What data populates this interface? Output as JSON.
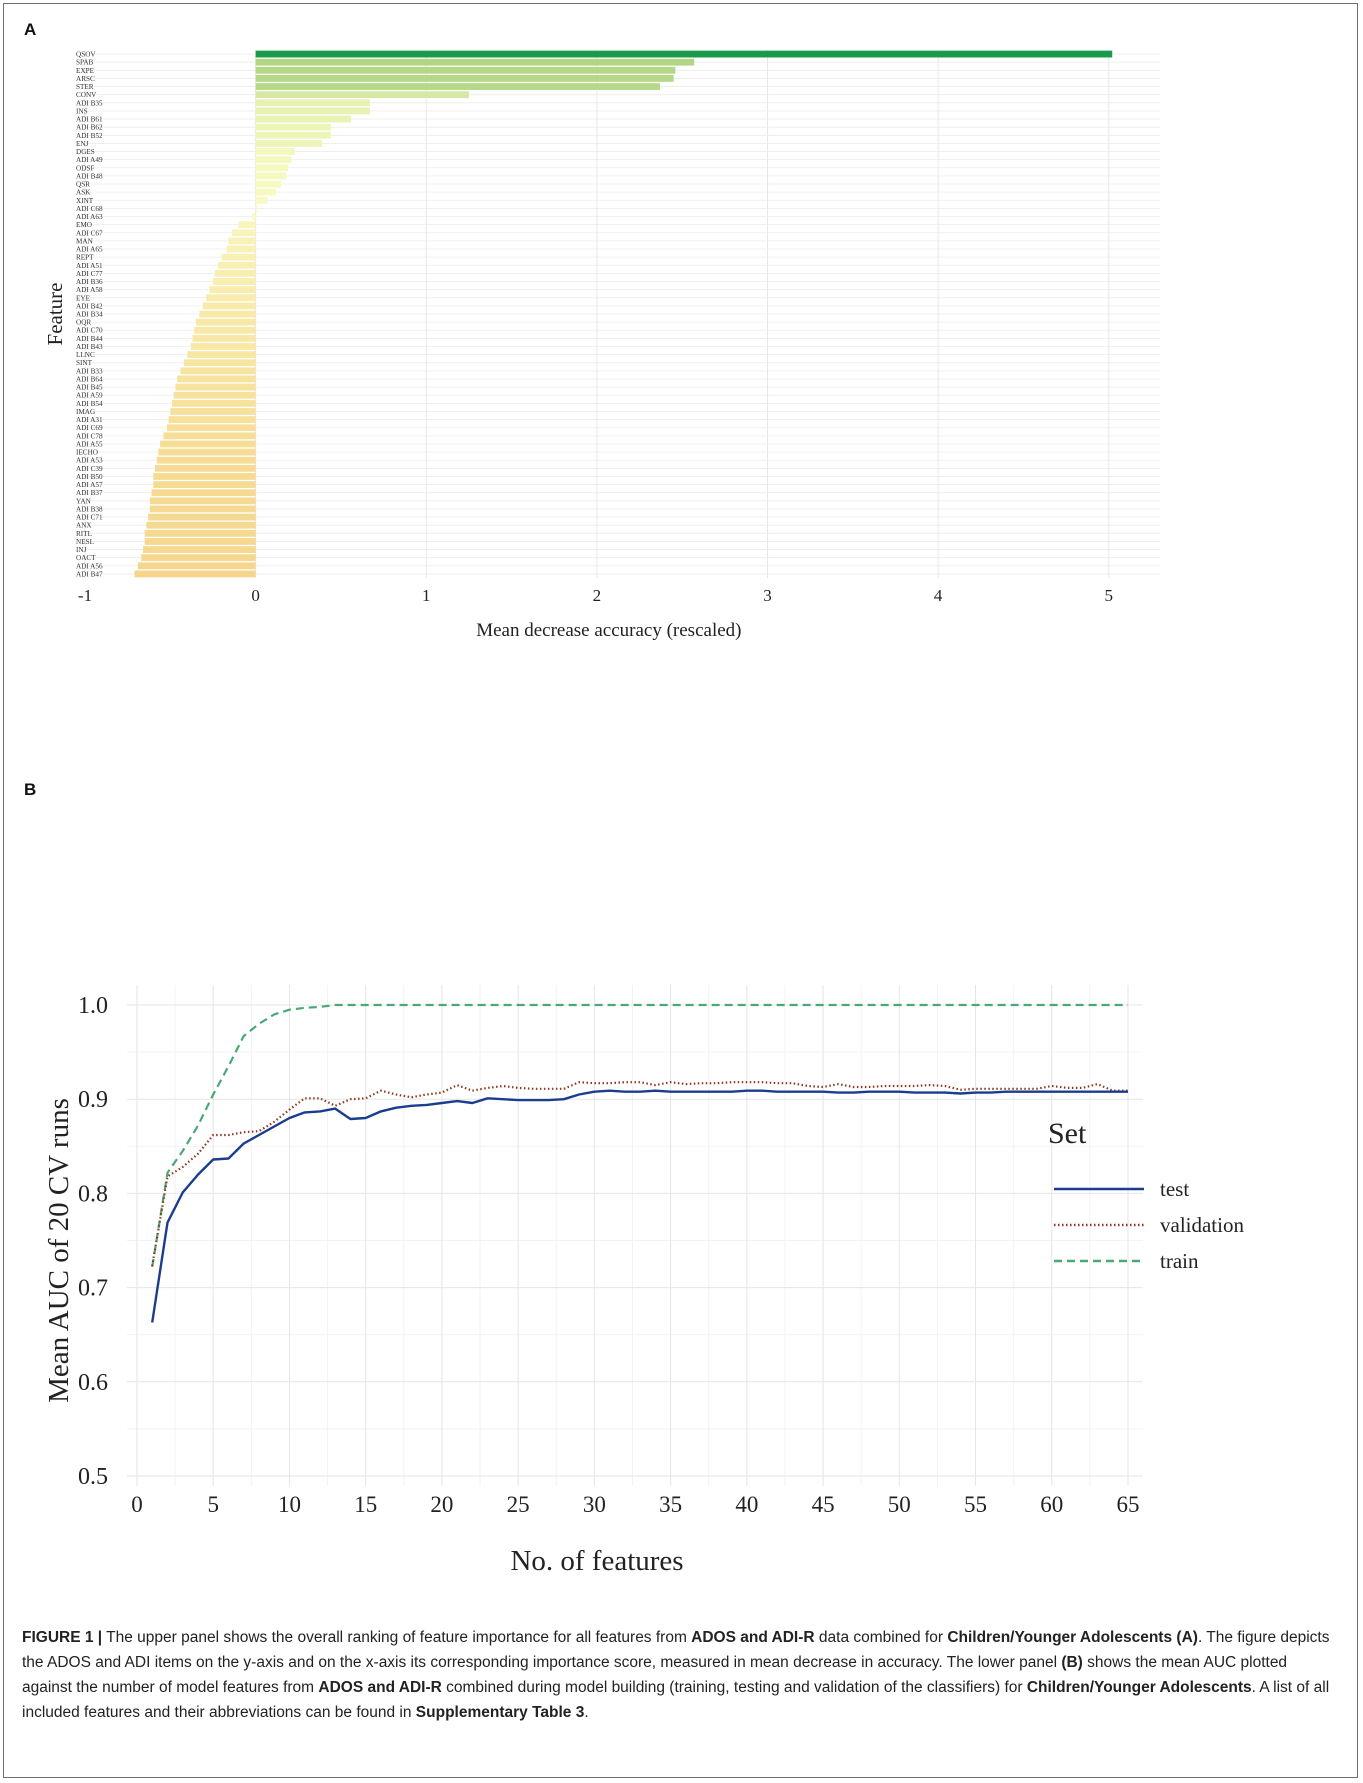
{
  "figure_frame": {},
  "panel_a": {
    "letter": "A",
    "chart_data": {
      "type": "bar",
      "orientation": "horizontal",
      "xlabel": "Mean decrease accuracy (rescaled)",
      "ylabel": "Feature",
      "xlim": [
        -1,
        5.3
      ],
      "xticks": [
        -1,
        0,
        1,
        2,
        3,
        4,
        5
      ],
      "grid": true,
      "color_scale": [
        "#1a9a4a",
        "#a3d078",
        "#fafbc4",
        "#f6d58a"
      ],
      "categories": [
        "QSOV",
        "SPAB",
        "EXPE",
        "ARSC",
        "STER",
        "CONV",
        "ADI B35",
        "INS",
        "ADI B61",
        "ADI B62",
        "ADI B52",
        "ENJ",
        "DGES",
        "ADI A49",
        "ODSF",
        "ADI B48",
        "QSR",
        "ASK",
        "XINT",
        "ADI C68",
        "ADI A63",
        "EMO",
        "ADI C67",
        "MAN",
        "ADI A65",
        "REPT",
        "ADI A51",
        "ADI C77",
        "ADI B36",
        "ADI A58",
        "EYE",
        "ADI B42",
        "ADI B34",
        "OQR",
        "ADI C70",
        "ADI B44",
        "ADI B43",
        "LLNC",
        "SINT",
        "ADI B33",
        "ADI B64",
        "ADI B45",
        "ADI A59",
        "ADI B54",
        "IMAG",
        "ADI A31",
        "ADI C69",
        "ADI C78",
        "ADI A55",
        "IECHO",
        "ADI A53",
        "ADI C39",
        "ADI B50",
        "ADI A57",
        "ADI B37",
        "YAN",
        "ADI B38",
        "ADI C71",
        "ANX",
        "RITL",
        "NESL",
        "INJ",
        "OACT",
        "ADI A56",
        "ADI B47"
      ],
      "values": [
        5.02,
        2.57,
        2.46,
        2.45,
        2.37,
        1.25,
        0.67,
        0.67,
        0.56,
        0.44,
        0.44,
        0.39,
        0.23,
        0.21,
        0.19,
        0.18,
        0.15,
        0.12,
        0.07,
        0.01,
        -0.02,
        -0.1,
        -0.14,
        -0.16,
        -0.17,
        -0.2,
        -0.22,
        -0.24,
        -0.25,
        -0.27,
        -0.29,
        -0.31,
        -0.33,
        -0.35,
        -0.36,
        -0.37,
        -0.38,
        -0.4,
        -0.42,
        -0.44,
        -0.46,
        -0.47,
        -0.48,
        -0.49,
        -0.5,
        -0.51,
        -0.52,
        -0.54,
        -0.56,
        -0.57,
        -0.58,
        -0.59,
        -0.6,
        -0.6,
        -0.61,
        -0.62,
        -0.62,
        -0.63,
        -0.64,
        -0.65,
        -0.65,
        -0.66,
        -0.67,
        -0.69,
        -0.71
      ]
    }
  },
  "panel_b": {
    "letter": "B",
    "chart_data": {
      "type": "line",
      "xlabel": "No. of features",
      "ylabel": "Mean  AUC of 20 CV runs",
      "xlim": [
        0,
        65
      ],
      "ylim": [
        0.5,
        1.0
      ],
      "xticks": [
        0,
        5,
        10,
        15,
        20,
        25,
        30,
        35,
        40,
        45,
        50,
        55,
        60,
        65
      ],
      "yticks": [
        0.5,
        0.6,
        0.7,
        0.8,
        0.9,
        1.0
      ],
      "ytick_labels": [
        "0.5",
        "0.6",
        "0.7",
        "0.8",
        "0.9",
        "1.0"
      ],
      "grid": true,
      "legend_title": "Set",
      "legend_position": "right",
      "series": [
        {
          "name": "test",
          "color": "#1b3d8f",
          "dash": "solid",
          "x": [
            1,
            2,
            3,
            4,
            5,
            6,
            7,
            8,
            9,
            10,
            11,
            12,
            13,
            14,
            15,
            16,
            17,
            18,
            19,
            20,
            21,
            22,
            23,
            24,
            25,
            26,
            27,
            28,
            29,
            30,
            31,
            32,
            33,
            34,
            35,
            36,
            37,
            38,
            39,
            40,
            41,
            42,
            43,
            44,
            45,
            46,
            47,
            48,
            49,
            50,
            51,
            52,
            53,
            54,
            55,
            56,
            57,
            58,
            59,
            60,
            61,
            62,
            63,
            64,
            65
          ],
          "values": [
            0.663,
            0.769,
            0.801,
            0.82,
            0.836,
            0.837,
            0.853,
            0.862,
            0.871,
            0.88,
            0.886,
            0.887,
            0.89,
            0.879,
            0.88,
            0.887,
            0.891,
            0.893,
            0.894,
            0.896,
            0.898,
            0.896,
            0.901,
            0.9,
            0.899,
            0.899,
            0.899,
            0.9,
            0.905,
            0.908,
            0.909,
            0.908,
            0.908,
            0.909,
            0.908,
            0.908,
            0.908,
            0.908,
            0.908,
            0.909,
            0.909,
            0.908,
            0.908,
            0.908,
            0.908,
            0.907,
            0.907,
            0.908,
            0.908,
            0.908,
            0.907,
            0.907,
            0.907,
            0.906,
            0.907,
            0.907,
            0.908,
            0.908,
            0.908,
            0.908,
            0.908,
            0.908,
            0.908,
            0.908,
            0.908
          ]
        },
        {
          "name": "validation",
          "color": "#8a3a1c",
          "dash": "dotted",
          "x": [
            1,
            2,
            3,
            4,
            5,
            6,
            7,
            8,
            9,
            10,
            11,
            12,
            13,
            14,
            15,
            16,
            17,
            18,
            19,
            20,
            21,
            22,
            23,
            24,
            25,
            26,
            27,
            28,
            29,
            30,
            31,
            32,
            33,
            34,
            35,
            36,
            37,
            38,
            39,
            40,
            41,
            42,
            43,
            44,
            45,
            46,
            47,
            48,
            49,
            50,
            51,
            52,
            53,
            54,
            55,
            56,
            57,
            58,
            59,
            60,
            61,
            62,
            63,
            64,
            65
          ],
          "values": [
            0.723,
            0.818,
            0.828,
            0.842,
            0.862,
            0.862,
            0.865,
            0.866,
            0.876,
            0.889,
            0.901,
            0.901,
            0.893,
            0.9,
            0.901,
            0.909,
            0.905,
            0.902,
            0.905,
            0.907,
            0.915,
            0.909,
            0.912,
            0.914,
            0.912,
            0.911,
            0.911,
            0.911,
            0.918,
            0.917,
            0.917,
            0.918,
            0.918,
            0.915,
            0.918,
            0.916,
            0.917,
            0.917,
            0.918,
            0.918,
            0.918,
            0.917,
            0.917,
            0.914,
            0.913,
            0.916,
            0.913,
            0.913,
            0.914,
            0.914,
            0.914,
            0.915,
            0.914,
            0.91,
            0.911,
            0.911,
            0.911,
            0.911,
            0.911,
            0.914,
            0.912,
            0.912,
            0.916,
            0.909,
            0.909
          ]
        },
        {
          "name": "train",
          "color": "#4aa876",
          "dash": "dashed",
          "x": [
            1,
            2,
            3,
            4,
            5,
            6,
            7,
            8,
            9,
            10,
            11,
            12,
            13,
            14,
            15,
            16,
            17,
            18,
            19,
            20,
            21,
            22,
            23,
            24,
            25,
            26,
            27,
            28,
            29,
            30,
            31,
            32,
            33,
            34,
            35,
            36,
            37,
            38,
            39,
            40,
            41,
            42,
            43,
            44,
            45,
            46,
            47,
            48,
            49,
            50,
            51,
            52,
            53,
            54,
            55,
            56,
            57,
            58,
            59,
            60,
            61,
            62,
            63,
            64,
            65
          ],
          "values": [
            0.722,
            0.822,
            0.845,
            0.872,
            0.905,
            0.935,
            0.967,
            0.98,
            0.99,
            0.995,
            0.997,
            0.998,
            1.0,
            1.0,
            1.0,
            1.0,
            1.0,
            1.0,
            1.0,
            1.0,
            1.0,
            1.0,
            1.0,
            1.0,
            1.0,
            1.0,
            1.0,
            1.0,
            1.0,
            1.0,
            1.0,
            1.0,
            1.0,
            1.0,
            1.0,
            1.0,
            1.0,
            1.0,
            1.0,
            1.0,
            1.0,
            1.0,
            1.0,
            1.0,
            1.0,
            1.0,
            1.0,
            1.0,
            1.0,
            1.0,
            1.0,
            1.0,
            1.0,
            1.0,
            1.0,
            1.0,
            1.0,
            1.0,
            1.0,
            1.0,
            1.0,
            1.0,
            1.0,
            1.0,
            1.0
          ]
        }
      ]
    }
  },
  "caption": {
    "figure_label": "FIGURE 1 |",
    "t1": " The upper panel shows the overall ranking of feature importance for all features from ",
    "b1": "ADOS and ADI-R",
    "t2": " data combined for ",
    "b2": "Children/Younger Adolescents",
    "t3": " ",
    "b3": "(A)",
    "t4": ". The figure depicts the ADOS and ADI items on the y-axis and on the x-axis its corresponding importance score, measured in mean decrease in accuracy. The lower panel ",
    "b4": "(B)",
    "t5": " shows the mean AUC plotted against the number of model features from ",
    "b5": "ADOS and ADI-R",
    "t6": " combined during model building (training, testing and validation of the classifiers) for ",
    "b6": "Children/Younger Adolescents",
    "t7": ". A list of all included features and their abbreviations can be found in ",
    "b7": "Supplementary Table 3",
    "t8": "."
  }
}
